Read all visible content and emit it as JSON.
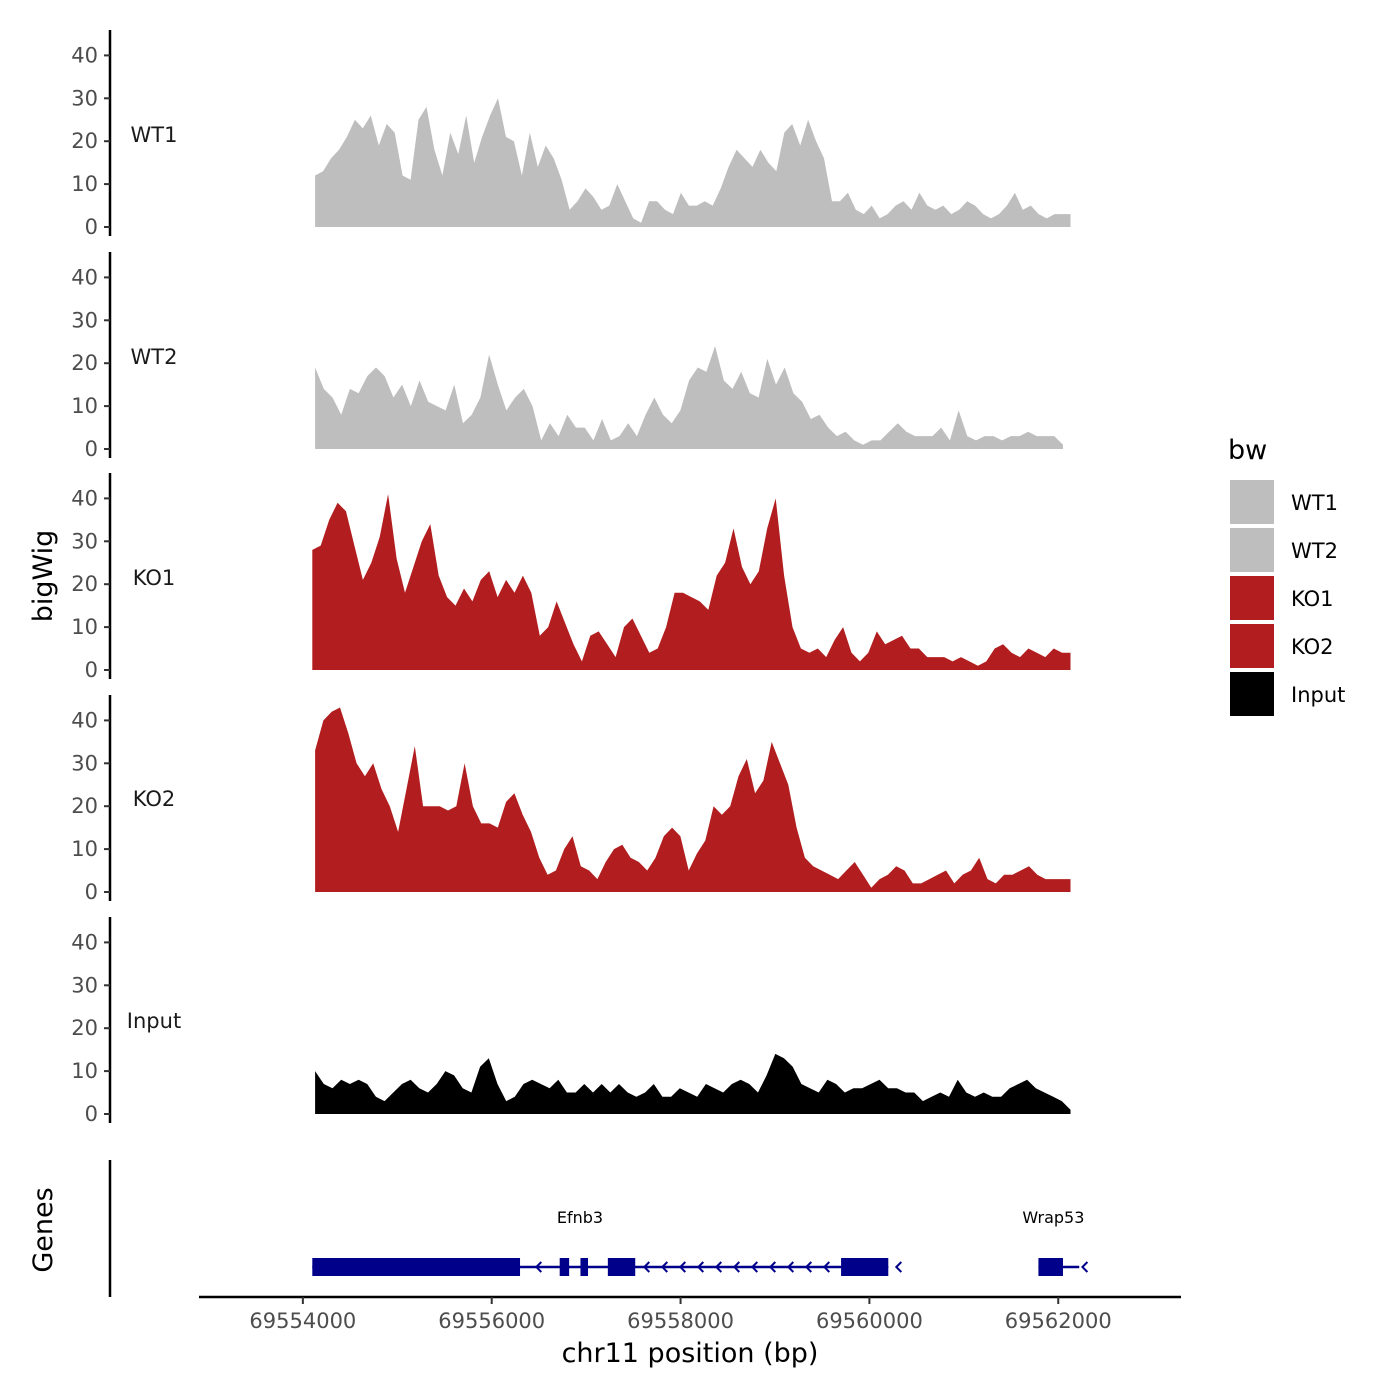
{
  "chart_data": {
    "type": "area",
    "ylabel": "bigWig",
    "xlabel": "chr11 position (bp)",
    "xlim": [
      69552900,
      69563300
    ],
    "x_ticks": [
      69554000,
      69556000,
      69558000,
      69560000,
      69562000
    ],
    "x_tick_labels": [
      "69554000",
      "69556000",
      "69558000",
      "69560000",
      "69562000"
    ],
    "y_ticks": [
      0,
      10,
      20,
      30,
      40
    ],
    "y_tick_labels": [
      "0",
      "10",
      "20",
      "30",
      "40"
    ],
    "ylim": [
      0,
      45
    ],
    "colors": {
      "WT": "#bebebe",
      "KO": "#b21e1f",
      "Input": "#000000",
      "gene": "#00008b"
    },
    "series": [
      {
        "name": "WT1",
        "color": "#bebebe",
        "x_start": 69554130,
        "x_end": 69562130,
        "values": [
          12,
          13,
          16,
          18,
          21,
          25,
          23,
          26,
          19,
          24,
          22,
          12,
          11,
          25,
          28,
          18,
          12,
          22,
          17,
          26,
          15,
          21,
          26,
          30,
          21,
          20,
          12,
          22,
          14,
          19,
          16,
          11,
          4,
          6,
          9,
          7,
          4,
          5,
          10,
          6,
          2,
          1,
          6,
          6,
          4,
          3,
          8,
          5,
          5,
          6,
          5,
          9,
          14,
          18,
          16,
          14,
          18,
          15,
          13,
          22,
          24,
          19,
          25,
          20,
          16,
          6,
          6,
          8,
          4,
          3,
          5,
          2,
          3,
          5,
          6,
          4,
          8,
          5,
          4,
          5,
          3,
          4,
          6,
          5,
          3,
          2,
          3,
          5,
          8,
          4,
          5,
          3,
          2,
          3,
          3,
          3
        ]
      },
      {
        "name": "WT2",
        "color": "#bebebe",
        "x_start": 69554130,
        "x_end": 69562050,
        "values": [
          19,
          14,
          12,
          8,
          14,
          13,
          17,
          19,
          17,
          12,
          15,
          10,
          16,
          11,
          10,
          9,
          15,
          6,
          8,
          12,
          22,
          15,
          9,
          12,
          14,
          10,
          2,
          6,
          3,
          8,
          5,
          5,
          2,
          7,
          2,
          3,
          6,
          3,
          8,
          12,
          8,
          6,
          9,
          16,
          19,
          18,
          24,
          16,
          14,
          18,
          13,
          12,
          21,
          15,
          19,
          13,
          11,
          7,
          8,
          5,
          3,
          4,
          2,
          1,
          2,
          2,
          4,
          6,
          4,
          3,
          3,
          3,
          5,
          2,
          9,
          3,
          2,
          3,
          3,
          2,
          3,
          3,
          4,
          3,
          3,
          3,
          1
        ]
      },
      {
        "name": "KO1",
        "color": "#b21e1f",
        "x_start": 69554100,
        "x_end": 69562130,
        "values": [
          28,
          29,
          35,
          39,
          37,
          29,
          21,
          25,
          31,
          41,
          26,
          18,
          24,
          30,
          34,
          22,
          17,
          15,
          19,
          16,
          21,
          23,
          17,
          21,
          18,
          22,
          18,
          8,
          10,
          16,
          11,
          6,
          2,
          8,
          9,
          6,
          3,
          10,
          12,
          8,
          4,
          5,
          10,
          18,
          18,
          17,
          16,
          14,
          22,
          25,
          33,
          24,
          20,
          23,
          33,
          40,
          22,
          10,
          5,
          4,
          5,
          3,
          7,
          10,
          4,
          2,
          4,
          9,
          6,
          7,
          8,
          5,
          5,
          3,
          3,
          3,
          2,
          3,
          2,
          1,
          2,
          5,
          6,
          4,
          3,
          5,
          4,
          3,
          5,
          4,
          4
        ]
      },
      {
        "name": "KO2",
        "color": "#b21e1f",
        "x_start": 69554130,
        "x_end": 69562130,
        "values": [
          33,
          40,
          42,
          43,
          37,
          30,
          27,
          30,
          24,
          20,
          14,
          24,
          34,
          20,
          20,
          20,
          19,
          20,
          30,
          20,
          16,
          16,
          15,
          21,
          23,
          18,
          14,
          8,
          4,
          5,
          10,
          13,
          6,
          5,
          3,
          7,
          10,
          11,
          8,
          7,
          5,
          8,
          13,
          15,
          13,
          5,
          9,
          12,
          20,
          18,
          20,
          27,
          31,
          23,
          26,
          35,
          30,
          25,
          15,
          8,
          6,
          5,
          4,
          3,
          5,
          7,
          4,
          1,
          3,
          4,
          6,
          5,
          2,
          2,
          3,
          4,
          5,
          2,
          4,
          5,
          8,
          3,
          2,
          4,
          4,
          5,
          6,
          4,
          3,
          3,
          3,
          3
        ]
      },
      {
        "name": "Input",
        "color": "#000000",
        "x_start": 69554130,
        "x_end": 69562130,
        "values": [
          10,
          7,
          6,
          8,
          7,
          8,
          7,
          4,
          3,
          5,
          7,
          8,
          6,
          5,
          7,
          10,
          9,
          6,
          5,
          11,
          13,
          7,
          3,
          4,
          7,
          8,
          7,
          6,
          8,
          5,
          5,
          7,
          5,
          7,
          5,
          7,
          5,
          4,
          5,
          7,
          4,
          4,
          6,
          5,
          4,
          7,
          6,
          5,
          7,
          8,
          7,
          5,
          9,
          14,
          13,
          11,
          7,
          6,
          5,
          8,
          7,
          5,
          6,
          6,
          7,
          8,
          6,
          6,
          5,
          5,
          3,
          4,
          5,
          4,
          8,
          5,
          4,
          5,
          4,
          4,
          6,
          7,
          8,
          6,
          5,
          4,
          3,
          1
        ]
      }
    ],
    "track_labels": [
      "WT1",
      "WT2",
      "KO1",
      "KO2",
      "Input"
    ],
    "legend": {
      "title": "bw",
      "position": "right",
      "entries": [
        {
          "label": "WT1",
          "color": "#bebebe"
        },
        {
          "label": "WT2",
          "color": "#bebebe"
        },
        {
          "label": "KO1",
          "color": "#b21e1f"
        },
        {
          "label": "KO2",
          "color": "#b21e1f"
        },
        {
          "label": "Input",
          "color": "#000000"
        }
      ]
    },
    "genes_panel": {
      "label": "Genes",
      "genes": [
        {
          "name": "Efnb3",
          "strand": "-",
          "start": 69554100,
          "end": 69560200,
          "exons": [
            [
              69554100,
              69556300
            ],
            [
              69556720,
              69556820
            ],
            [
              69556940,
              69557020
            ],
            [
              69557230,
              69557520
            ],
            [
              69559700,
              69560200
            ]
          ]
        },
        {
          "name": "Wrap53",
          "strand": "-",
          "start": 69561790,
          "end": 69562180,
          "exons": [
            [
              69561790,
              69562050
            ]
          ]
        }
      ]
    }
  }
}
